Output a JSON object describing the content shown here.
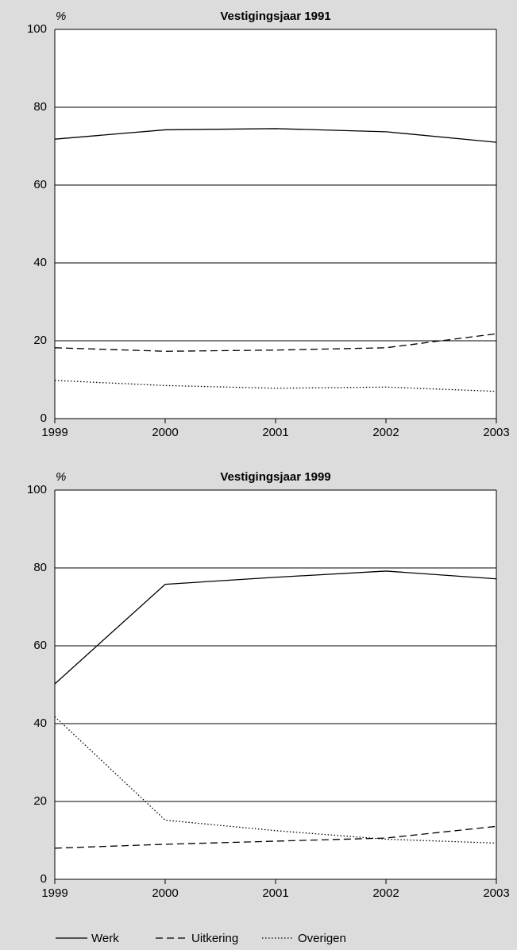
{
  "chart_data": [
    {
      "type": "line",
      "title": "Vestigingsjaar 1991",
      "ylabel": "%",
      "x": [
        1999,
        2000,
        2001,
        2002,
        2003
      ],
      "xlim": [
        1999,
        2003
      ],
      "xticks": [
        1999,
        2000,
        2001,
        2002,
        2003
      ],
      "ylim": [
        0,
        100
      ],
      "yticks": [
        0,
        20,
        40,
        60,
        80,
        100
      ],
      "grid": true,
      "series": [
        {
          "name": "Werk",
          "color": "#000000",
          "linestyle": "solid",
          "values": [
            71.8,
            74.2,
            74.5,
            73.7,
            71.0
          ]
        },
        {
          "name": "Uitkering",
          "color": "#000000",
          "linestyle": "dashed",
          "values": [
            18.2,
            17.3,
            17.6,
            18.2,
            21.8
          ]
        },
        {
          "name": "Overigen",
          "color": "#000000",
          "linestyle": "dotted",
          "values": [
            9.8,
            8.5,
            7.8,
            8.1,
            7.0
          ]
        }
      ]
    },
    {
      "type": "line",
      "title": "Vestigingsjaar 1999",
      "ylabel": "%",
      "x": [
        1999,
        2000,
        2001,
        2002,
        2003
      ],
      "xlim": [
        1999,
        2003
      ],
      "xticks": [
        1999,
        2000,
        2001,
        2002,
        2003
      ],
      "ylim": [
        0,
        100
      ],
      "yticks": [
        0,
        20,
        40,
        60,
        80,
        100
      ],
      "grid": true,
      "series": [
        {
          "name": "Werk",
          "color": "#000000",
          "linestyle": "solid",
          "values": [
            50.2,
            75.8,
            77.6,
            79.2,
            77.2
          ]
        },
        {
          "name": "Uitkering",
          "color": "#000000",
          "linestyle": "dashed",
          "values": [
            8.0,
            9.0,
            9.8,
            10.6,
            13.6
          ]
        },
        {
          "name": "Overigen",
          "color": "#000000",
          "linestyle": "dotted",
          "values": [
            41.8,
            15.2,
            12.5,
            10.3,
            9.3
          ]
        }
      ]
    }
  ]
}
